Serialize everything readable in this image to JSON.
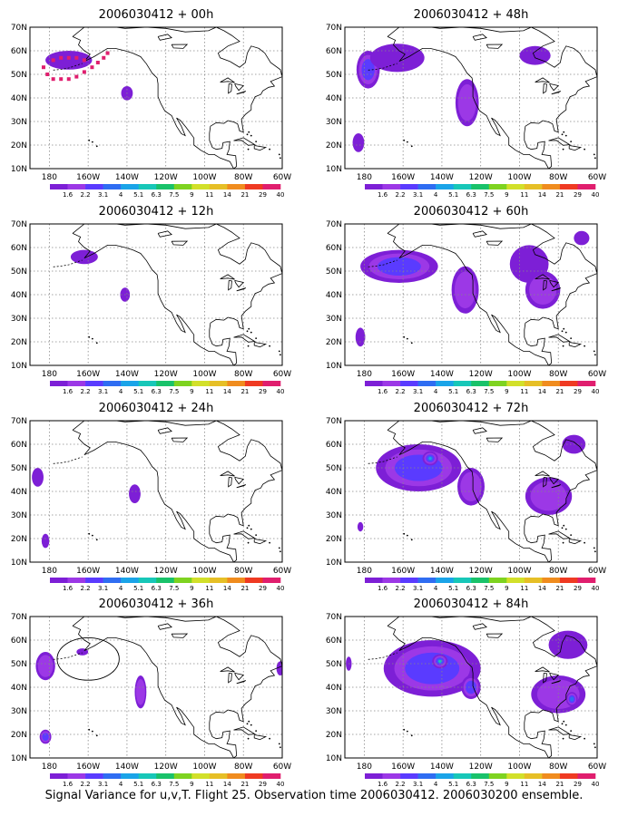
{
  "caption": "Signal Variance for u,v,T. Flight 25. Observation time 2006030412. 2006030200 ensemble.",
  "axes": {
    "lat_labels": [
      "70N",
      "60N",
      "50N",
      "40N",
      "30N",
      "20N",
      "10N"
    ],
    "lon_labels": [
      "180",
      "160W",
      "140W",
      "120W",
      "100W",
      "80W",
      "60W"
    ],
    "lon_range": [
      -190,
      -60
    ],
    "lat_range": [
      10,
      70
    ]
  },
  "colorbar": {
    "labels": [
      "1.6",
      "2.2",
      "3.1",
      "4",
      "5.1",
      "6.3",
      "7.5",
      "9",
      "11",
      "14",
      "21",
      "29",
      "40"
    ],
    "colors": [
      "#7d1fd6",
      "#9c38e6",
      "#5a3bff",
      "#2f6df2",
      "#1aa4e8",
      "#17c7b8",
      "#19c26a",
      "#7ed320",
      "#d2e02a",
      "#e6bf26",
      "#f08c1e",
      "#ef3a22",
      "#e01e6e"
    ]
  },
  "panels": [
    {
      "title": "2006030412 + 00h",
      "blobs": [
        {
          "lon": -170,
          "lat": 56,
          "rx": 12,
          "ry": 4,
          "level": 0
        },
        {
          "lon": -140,
          "lat": 42,
          "rx": 3,
          "ry": 3,
          "level": 0
        }
      ],
      "markers": [
        [
          -183,
          53
        ],
        [
          -181,
          50
        ],
        [
          -178,
          48
        ],
        [
          -174,
          48
        ],
        [
          -170,
          48
        ],
        [
          -166,
          49
        ],
        [
          -162,
          51
        ],
        [
          -158,
          53
        ],
        [
          -155,
          55
        ],
        [
          -152,
          57
        ],
        [
          -150,
          59
        ],
        [
          -178,
          56
        ],
        [
          -174,
          57
        ],
        [
          -170,
          57
        ],
        [
          -166,
          57
        ],
        [
          -162,
          56
        ]
      ]
    },
    {
      "title": "2006030412 + 48h",
      "blobs": [
        {
          "lon": -178,
          "lat": 52,
          "rx": 6,
          "ry": 8,
          "level": 2
        },
        {
          "lon": -163,
          "lat": 57,
          "rx": 14,
          "ry": 6,
          "level": 0
        },
        {
          "lon": -127,
          "lat": 38,
          "rx": 6,
          "ry": 10,
          "level": 1
        },
        {
          "lon": -92,
          "lat": 58,
          "rx": 8,
          "ry": 4,
          "level": 0
        },
        {
          "lon": -183,
          "lat": 21,
          "rx": 3,
          "ry": 4,
          "level": 0
        }
      ],
      "markers": []
    },
    {
      "title": "2006030412 + 12h",
      "blobs": [
        {
          "lon": -162,
          "lat": 56,
          "rx": 7,
          "ry": 3,
          "level": 0
        },
        {
          "lon": -141,
          "lat": 40,
          "rx": 2.5,
          "ry": 3,
          "level": 0
        }
      ],
      "markers": []
    },
    {
      "title": "2006030412 + 60h",
      "blobs": [
        {
          "lon": -162,
          "lat": 52,
          "rx": 20,
          "ry": 7,
          "level": 2
        },
        {
          "lon": -128,
          "lat": 42,
          "rx": 7,
          "ry": 10,
          "level": 1
        },
        {
          "lon": -95,
          "lat": 53,
          "rx": 10,
          "ry": 8,
          "level": 0
        },
        {
          "lon": -88,
          "lat": 42,
          "rx": 9,
          "ry": 8,
          "level": 1
        },
        {
          "lon": -68,
          "lat": 64,
          "rx": 4,
          "ry": 3,
          "level": 0
        },
        {
          "lon": -182,
          "lat": 22,
          "rx": 2.5,
          "ry": 4,
          "level": 0
        }
      ],
      "markers": []
    },
    {
      "title": "2006030412 + 24h",
      "blobs": [
        {
          "lon": -186,
          "lat": 46,
          "rx": 3,
          "ry": 4,
          "level": 0
        },
        {
          "lon": -182,
          "lat": 19,
          "rx": 2,
          "ry": 3,
          "level": 0
        },
        {
          "lon": -136,
          "lat": 39,
          "rx": 3,
          "ry": 4,
          "level": 0
        }
      ],
      "markers": []
    },
    {
      "title": "2006030412 + 72h",
      "blobs": [
        {
          "lon": -152,
          "lat": 50,
          "rx": 22,
          "ry": 10,
          "level": 2
        },
        {
          "lon": -146,
          "lat": 54,
          "rx": 4,
          "ry": 3,
          "level": 4
        },
        {
          "lon": -125,
          "lat": 42,
          "rx": 7,
          "ry": 8,
          "level": 1
        },
        {
          "lon": -85,
          "lat": 38,
          "rx": 12,
          "ry": 8,
          "level": 1
        },
        {
          "lon": -72,
          "lat": 60,
          "rx": 6,
          "ry": 4,
          "level": 0
        },
        {
          "lon": -182,
          "lat": 25,
          "rx": 1.5,
          "ry": 2,
          "level": 0
        }
      ],
      "markers": []
    },
    {
      "title": "2006030412 + 36h",
      "blobs": [
        {
          "lon": -182,
          "lat": 49,
          "rx": 5,
          "ry": 6,
          "level": 1
        },
        {
          "lon": -163,
          "lat": 55,
          "rx": 3,
          "ry": 1.5,
          "level": 0
        },
        {
          "lon": -133,
          "lat": 38,
          "rx": 3,
          "ry": 7,
          "level": 1
        },
        {
          "lon": -182,
          "lat": 19,
          "rx": 3,
          "ry": 3,
          "level": 2
        },
        {
          "lon": -61,
          "lat": 48,
          "rx": 2,
          "ry": 3,
          "level": 0
        }
      ],
      "markers": []
    },
    {
      "title": "2006030412 + 84h",
      "blobs": [
        {
          "lon": -145,
          "lat": 48,
          "rx": 25,
          "ry": 12,
          "level": 2
        },
        {
          "lon": -141,
          "lat": 51,
          "rx": 4,
          "ry": 3,
          "level": 5
        },
        {
          "lon": -125,
          "lat": 40,
          "rx": 5,
          "ry": 5,
          "level": 2
        },
        {
          "lon": -80,
          "lat": 37,
          "rx": 14,
          "ry": 8,
          "level": 1
        },
        {
          "lon": -73,
          "lat": 35,
          "rx": 3,
          "ry": 3,
          "level": 3
        },
        {
          "lon": -75,
          "lat": 58,
          "rx": 10,
          "ry": 6,
          "level": 0
        },
        {
          "lon": -188,
          "lat": 50,
          "rx": 1.5,
          "ry": 3,
          "level": 0
        }
      ],
      "markers": []
    }
  ]
}
